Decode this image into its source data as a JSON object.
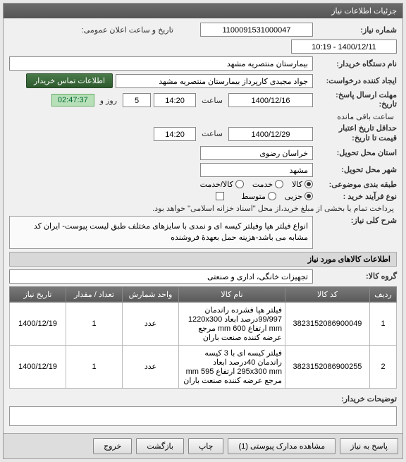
{
  "header": {
    "title": "جزئیات اطلاعات نیاز"
  },
  "fields": {
    "need_number_label": "شماره نیاز:",
    "need_number": "1100091531000047",
    "announce_label": "تاریخ و ساعت اعلان عمومی:",
    "announce_value": "1400/12/11 - 10:19",
    "buyer_label": "نام دستگاه خریدار:",
    "buyer_value": "بیمارستان منتصریه مشهد",
    "requester_label": "ایجاد کننده درخواست:",
    "requester_value": "جواد مجیدی کارپرداز بیمارستان منتصریه مشهد",
    "deadline_label": "مهلت ارسال پاسخ:\nتاریخ:",
    "deadline_date": "1400/12/16",
    "time_label": "ساعت",
    "deadline_time": "14:20",
    "days_count": "5",
    "days_suffix": "روز و",
    "countdown": "02:47:37",
    "remaining": "ساعت باقی مانده",
    "validity_label": "حداقل تاریخ اعتبار\nقیمت تا تاریخ:",
    "validity_date": "1400/12/29",
    "validity_time": "14:20",
    "province_label": "استان محل تحویل:",
    "province": "خراسان رضوی",
    "city_label": "شهر محل تحویل:",
    "city": "مشهد",
    "category_label": "طبقه بندی موضوعی:",
    "cat_goods": "کالا",
    "cat_service": "خدمت",
    "cat_both": "کالا/خدمت",
    "process_label": "نوع فرآیند خرید :",
    "proc_partial": "جزیی",
    "proc_medium": "متوسط",
    "payment_note": "پرداخت تمام یا بخشی از مبلغ خرید،از محل \"اسناد خزانه اسلامی\" خواهد بود.",
    "contact_btn": "اطلاعات تماس خریدار"
  },
  "desc": {
    "title": "شرح کلی نیاز:",
    "text": "انواع فیلتر هپا وفیلتر کیسه ای و نمدی با سایزهای مختلف طبق لیست پیوست- ایران کد مشابه می باشد-هزینه حمل بعهدۀ فروشنده"
  },
  "goods": {
    "header": "اطلاعات کالاهای مورد نیاز",
    "group_label": "گروه کالا:",
    "group_value": "تجهیزات خانگی، اداری و صنعتی",
    "columns": [
      "ردیف",
      "کد کالا",
      "نام کالا",
      "واحد شمارش",
      "تعداد / مقدار",
      "تاریخ نیاز"
    ],
    "rows": [
      [
        "1",
        "3823152086900049",
        "فیلتر هپا فشرده راندمان 99/997درصد ابعاد 1220x300 mm ارتفاع mm 600 مرجع عرضه کننده صنعت باران",
        "عدد",
        "1",
        "1400/12/19"
      ],
      [
        "2",
        "3823152086900255",
        "فیلتر کیسه ای با 3 کیسه راندمان 40درصد ابعاد 295x300 mm ارتفاع 595 mm مرجع عرضه کننده صنعت باران",
        "عدد",
        "1",
        "1400/12/19"
      ]
    ]
  },
  "buyer_notes": {
    "label": "توضیحات خریدار:"
  },
  "buttons": {
    "respond": "پاسخ به نیاز",
    "attachments": "مشاهده مدارک پیوستی (1)",
    "print": "چاپ",
    "back": "بازگشت",
    "exit": "خروج"
  }
}
